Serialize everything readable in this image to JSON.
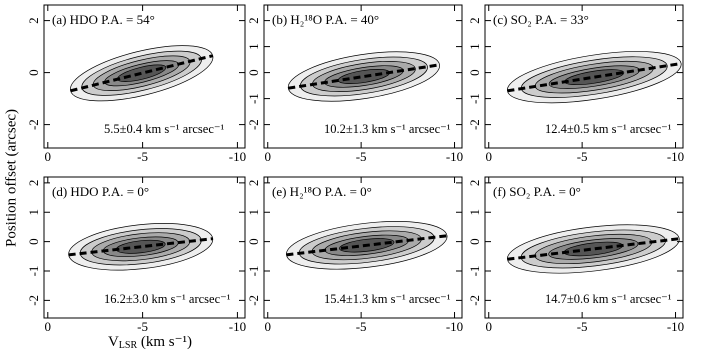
{
  "chart_data": [
    {
      "type": "pv-diagram",
      "title": "(a) HDO  P.A. = 54°",
      "annotation": "5.5±0.4 km s⁻¹ arcsec⁻¹",
      "xlim": [
        0.2,
        -10.4
      ],
      "ylim": [
        -2.9,
        2.6
      ],
      "xticks": [
        0,
        -5,
        -10
      ],
      "yticks": [
        2,
        0,
        -2
      ],
      "series": [
        {
          "name": null,
          "color": "#000000",
          "x": [
            -1.2,
            -8.7
          ],
          "values": [
            -0.7,
            0.65
          ]
        }
      ]
    },
    {
      "type": "pv-diagram",
      "title": "(b) H₂¹⁸O  P.A. = 40°",
      "annotation": "10.2±1.3 km s⁻¹ arcsec⁻¹",
      "xlim": [
        0.2,
        -10.4
      ],
      "ylim": [
        -2.9,
        2.6
      ],
      "xticks": [
        0,
        -5,
        -10
      ],
      "yticks": [
        2,
        1,
        0,
        -1,
        -2
      ],
      "series": [
        {
          "name": null,
          "color": "#000000",
          "x": [
            -1.1,
            -9.2
          ],
          "values": [
            -0.6,
            0.3
          ]
        }
      ]
    },
    {
      "type": "pv-diagram",
      "title": "(c) SO₂  P.A. = 33°",
      "annotation": "12.4±0.5 km s⁻¹ arcsec⁻¹",
      "xlim": [
        0.2,
        -10.4
      ],
      "ylim": [
        -2.9,
        2.6
      ],
      "xticks": [
        0,
        -5,
        -10
      ],
      "yticks": [
        2,
        1,
        0,
        -1,
        -2
      ],
      "series": [
        {
          "name": null,
          "color": "#000000",
          "x": [
            -1,
            -10.3
          ],
          "values": [
            -0.7,
            0.35
          ]
        }
      ]
    },
    {
      "type": "pv-diagram",
      "title": "(d) HDO  P.A. = 0°",
      "annotation": "16.2±3.0 km s⁻¹ arcsec⁻¹",
      "xlim": [
        0.2,
        -10.4
      ],
      "ylim": [
        -2.6,
        2.2
      ],
      "xticks": [
        0,
        -5,
        -10
      ],
      "yticks": [
        2,
        1,
        0,
        -1,
        -2
      ],
      "series": [
        {
          "name": null,
          "color": "#000000",
          "x": [
            -1.1,
            -8.7
          ],
          "values": [
            -0.45,
            0.1
          ]
        }
      ]
    },
    {
      "type": "pv-diagram",
      "title": "(e) H₂¹⁸O  P.A. = 0°",
      "annotation": "15.4±1.3 km s⁻¹ arcsec⁻¹",
      "xlim": [
        0.2,
        -10.4
      ],
      "ylim": [
        -2.6,
        2.2
      ],
      "xticks": [
        0,
        -5,
        -10
      ],
      "yticks": [
        2,
        1,
        0,
        -1,
        -2
      ],
      "series": [
        {
          "name": null,
          "color": "#000000",
          "x": [
            -1,
            -9.6
          ],
          "values": [
            -0.45,
            0.2
          ]
        }
      ]
    },
    {
      "type": "pv-diagram",
      "title": "(f) SO₂  P.A. = 0°",
      "annotation": "14.7±0.6 km s⁻¹ arcsec⁻¹",
      "xlim": [
        0.2,
        -10.4
      ],
      "ylim": [
        -2.6,
        2.2
      ],
      "xticks": [
        0,
        -5,
        -10
      ],
      "yticks": [
        2,
        1,
        0,
        -1,
        -2
      ],
      "series": [
        {
          "name": null,
          "color": "#000000",
          "x": [
            -1,
            -10.2
          ],
          "values": [
            -0.6,
            0.1
          ]
        }
      ]
    }
  ],
  "x_label": {
    "main": "V",
    "sub": "LSR",
    "rest": " (km s⁻¹)"
  },
  "y_label": "Position offset (arcsec)"
}
